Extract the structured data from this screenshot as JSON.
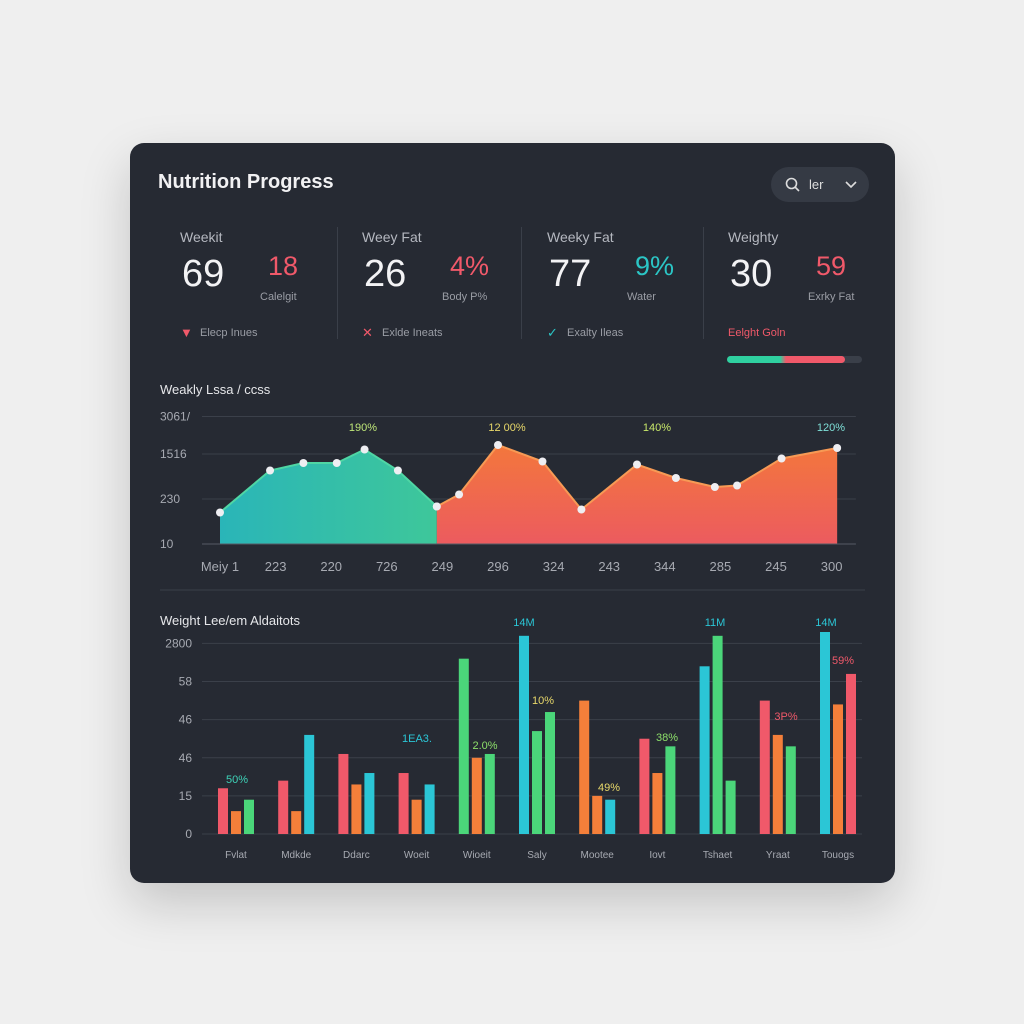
{
  "header": {
    "title": "Nutrition Progress",
    "search": "ler"
  },
  "stats": [
    {
      "label": "Weekit",
      "value": "69",
      "accent": "18",
      "sub": "Calelgit",
      "footer": "Elecp Inues"
    },
    {
      "label": "Weey Fat",
      "value": "26",
      "accent": "4%",
      "sub": "Body P%",
      "footer": "Exlde Ineats"
    },
    {
      "label": "Weeky Fat",
      "value": "77",
      "accent": "9%",
      "sub": "Water",
      "footer": "Exalty Ileas"
    },
    {
      "label": "Weighty",
      "value": "30",
      "accent": "59",
      "sub": "Exrky Fat",
      "footer": "Eelght Goln"
    }
  ],
  "chart_data": [
    {
      "type": "area",
      "title": "Weakly Lssa / ccss",
      "xlim": [
        0,
        11.4
      ],
      "xticks": [
        {
          "value": 0,
          "label": "Meiy 1"
        },
        {
          "value": 1,
          "label": "223"
        },
        {
          "value": 2,
          "label": "220"
        },
        {
          "value": 3,
          "label": "726"
        },
        {
          "value": 4,
          "label": "249"
        },
        {
          "value": 5,
          "label": "296"
        },
        {
          "value": 6,
          "label": "324"
        },
        {
          "value": 7,
          "label": "243"
        },
        {
          "value": 8,
          "label": "344"
        },
        {
          "value": 9,
          "label": "285"
        },
        {
          "value": 10,
          "label": "245"
        },
        {
          "value": 11,
          "label": "300"
        }
      ],
      "ylim": [
        10,
        100
      ],
      "yticks": [
        10,
        {
          "value": 40,
          "label": "230"
        },
        {
          "value": 70,
          "label": "1516"
        },
        {
          "value": 95,
          "label": "3061/"
        }
      ],
      "grid": true,
      "series": [
        {
          "color": "#2fc3a7",
          "x": [
            0,
            0.9,
            1.5,
            2.1,
            2.6,
            3.2,
            3.9
          ],
          "values": [
            31,
            59,
            64,
            64,
            73,
            59,
            35
          ]
        },
        {
          "color": "#f06a4a",
          "x": [
            3.9,
            4.3,
            5.0,
            5.8,
            6.5,
            7.5,
            8.2,
            8.9,
            9.3,
            10.1,
            11.1
          ],
          "values": [
            35,
            43,
            76,
            65,
            33,
            63,
            54,
            48,
            49,
            67,
            74
          ]
        }
      ],
      "annotations": [
        "190%",
        "12 00%",
        "140%",
        "120%"
      ]
    },
    {
      "type": "bar",
      "title": "Weight Lee/em Aldaitots",
      "categories": [
        "Fvlat",
        "Mdkde",
        "Ddarc",
        "Woeit",
        "Wioeit",
        "Saly",
        "Mootee",
        "Iovt",
        "Tshaet",
        "Yraat",
        "Touogs"
      ],
      "ylim": [
        0,
        5.3
      ],
      "yticks": [
        0,
        {
          "value": 1,
          "label": "15"
        },
        {
          "value": 2,
          "label": "46"
        },
        {
          "value": 3,
          "label": "46"
        },
        {
          "value": 4,
          "label": "58"
        },
        {
          "value": 5,
          "label": "2800"
        }
      ],
      "grid": true,
      "series": [
        {
          "colors": [
            "#f0596a",
            "#f0596a",
            "#f0596a",
            "#f0596a",
            "#4bd67a",
            "#2bc6d6",
            "#f47f3a",
            "#f0596a",
            "#2bc6d6",
            "#f0596a",
            "#2bc6d6"
          ],
          "values": [
            1.2,
            1.4,
            2.1,
            1.6,
            4.6,
            5.2,
            3.5,
            2.5,
            4.4,
            3.5,
            5.3
          ]
        },
        {
          "colors": [
            "#f47f3a",
            "#f47f3a",
            "#f47f3a",
            "#f47f3a",
            "#f47f3a",
            "#4bd67a",
            "#f47f3a",
            "#f47f3a",
            "#4bd67a",
            "#f47f3a",
            "#f47f3a"
          ],
          "values": [
            0.6,
            0.6,
            1.3,
            0.9,
            2.0,
            2.7,
            1.0,
            1.6,
            5.2,
            2.6,
            3.4
          ]
        },
        {
          "colors": [
            "#4bd67a",
            "#2bc6d6",
            "#2bc6d6",
            "#2bc6d6",
            "#4bd67a",
            "#4bd67a",
            "#2bc6d6",
            "#4bd67a",
            "#4bd67a",
            "#4bd67a",
            "#f0596a"
          ],
          "values": [
            0.9,
            2.6,
            1.6,
            1.3,
            2.1,
            3.2,
            0.9,
            2.3,
            1.4,
            2.3,
            4.2
          ]
        }
      ],
      "annotations": [
        "50%",
        "1EA3.",
        "2.0%",
        "14M",
        "10%",
        "49%",
        "38%",
        "11M",
        "3P%",
        "14M",
        "59%"
      ]
    }
  ]
}
